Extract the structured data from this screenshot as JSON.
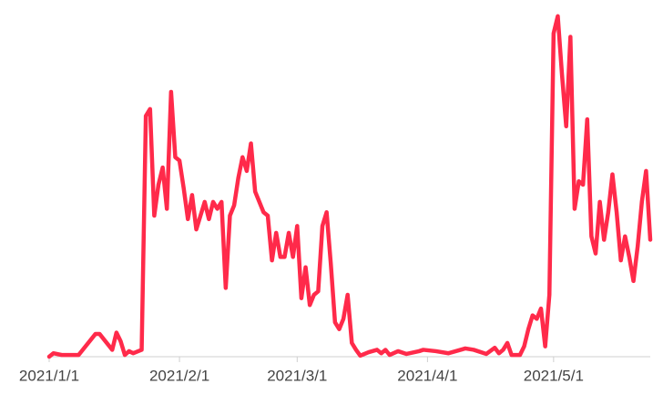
{
  "chart_data": {
    "type": "line",
    "x": [
      "2021-01-01",
      "2021-01-02",
      "2021-01-04",
      "2021-01-08",
      "2021-01-12",
      "2021-01-13",
      "2021-01-16",
      "2021-01-17",
      "2021-01-18",
      "2021-01-19",
      "2021-01-20",
      "2021-01-21",
      "2021-01-23",
      "2021-01-24",
      "2021-01-25",
      "2021-01-26",
      "2021-01-27",
      "2021-01-28",
      "2021-01-29",
      "2021-01-30",
      "2021-01-31",
      "2021-02-01",
      "2021-02-02",
      "2021-02-03",
      "2021-02-04",
      "2021-02-05",
      "2021-02-06",
      "2021-02-07",
      "2021-02-08",
      "2021-02-09",
      "2021-02-10",
      "2021-02-11",
      "2021-02-12",
      "2021-02-13",
      "2021-02-14",
      "2021-02-15",
      "2021-02-16",
      "2021-02-17",
      "2021-02-18",
      "2021-02-19",
      "2021-02-20",
      "2021-02-21",
      "2021-02-22",
      "2021-02-23",
      "2021-02-24",
      "2021-02-25",
      "2021-02-26",
      "2021-02-27",
      "2021-02-28",
      "2021-03-01",
      "2021-03-02",
      "2021-03-03",
      "2021-03-04",
      "2021-03-05",
      "2021-03-06",
      "2021-03-07",
      "2021-03-08",
      "2021-03-09",
      "2021-03-10",
      "2021-03-11",
      "2021-03-12",
      "2021-03-13",
      "2021-03-14",
      "2021-03-15",
      "2021-03-16",
      "2021-03-18",
      "2021-03-20",
      "2021-03-21",
      "2021-03-22",
      "2021-03-23",
      "2021-03-25",
      "2021-03-27",
      "2021-03-30",
      "2021-03-31",
      "2021-04-03",
      "2021-04-06",
      "2021-04-10",
      "2021-04-12",
      "2021-04-15",
      "2021-04-17",
      "2021-04-18",
      "2021-04-19",
      "2021-04-20",
      "2021-04-21",
      "2021-04-23",
      "2021-04-24",
      "2021-04-25",
      "2021-04-26",
      "2021-04-27",
      "2021-04-28",
      "2021-04-29",
      "2021-04-30",
      "2021-05-01",
      "2021-05-02",
      "2021-05-03",
      "2021-05-04",
      "2021-05-05",
      "2021-05-06",
      "2021-05-07",
      "2021-05-08",
      "2021-05-09",
      "2021-05-10",
      "2021-05-11",
      "2021-05-12",
      "2021-05-13",
      "2021-05-14",
      "2021-05-15",
      "2021-05-16",
      "2021-05-17",
      "2021-05-18",
      "2021-05-19",
      "2021-05-20",
      "2021-05-21",
      "2021-05-22",
      "2021-05-23",
      "2021-05-24"
    ],
    "values": [
      0,
      1,
      0.5,
      0.5,
      6.6,
      6.6,
      2,
      7,
      4.5,
      0.5,
      1.6,
      1,
      2,
      70,
      72,
      41,
      50,
      55,
      43,
      77,
      58,
      57,
      49,
      40,
      47,
      37,
      41,
      45,
      40,
      45,
      43,
      45,
      20,
      41,
      44,
      52,
      58,
      54,
      62,
      48,
      45,
      42,
      41,
      28,
      36,
      29,
      29,
      36,
      29,
      38,
      17,
      26,
      15,
      18,
      19,
      38,
      42,
      27,
      10,
      8,
      11,
      18,
      4,
      2,
      0.3,
      1.3,
      2,
      1,
      2,
      0.5,
      1.6,
      0.8,
      1.6,
      2,
      1.6,
      1,
      2.4,
      2,
      0.8,
      2.6,
      1,
      2,
      4,
      0.5,
      0.5,
      3,
      8,
      12,
      11,
      14,
      3,
      18,
      94,
      99,
      82,
      67,
      93,
      43,
      51,
      50,
      69,
      35,
      30,
      45,
      34,
      42,
      53,
      42,
      28,
      35,
      29,
      22,
      32,
      45,
      54,
      34
    ],
    "color": "#ff2a4a",
    "xlim": [
      "2021-01-01",
      "2021-05-24"
    ],
    "xticks": [
      {
        "value": "2021-01-01",
        "label": "2021/1/1"
      },
      {
        "value": "2021-02-01",
        "label": "2021/2/1"
      },
      {
        "value": "2021-03-01",
        "label": "2021/3/1"
      },
      {
        "value": "2021-04-01",
        "label": "2021/4/1"
      },
      {
        "value": "2021-05-01",
        "label": "2021/5/1"
      }
    ],
    "ylim": [
      0,
      100
    ]
  }
}
